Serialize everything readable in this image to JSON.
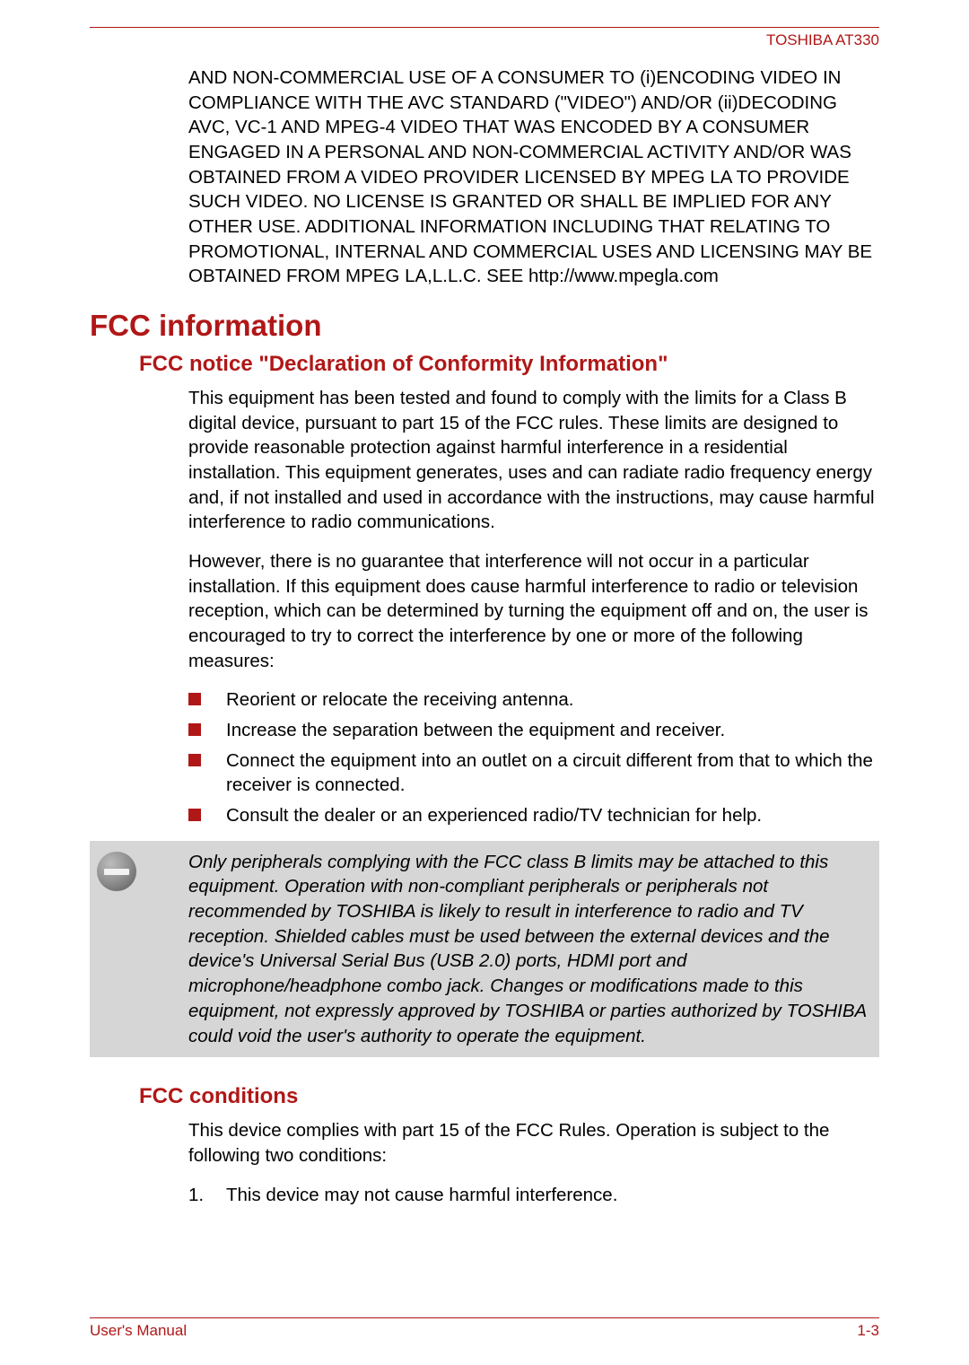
{
  "header": {
    "brand": "TOSHIBA AT330"
  },
  "intro_continuation": "AND NON-COMMERCIAL USE OF A CONSUMER TO (i)ENCODING VIDEO IN COMPLIANCE WITH THE AVC STANDARD (\"VIDEO\") AND/OR (ii)DECODING AVC, VC-1 AND MPEG-4 VIDEO THAT WAS ENCODED BY A CONSUMER ENGAGED IN A PERSONAL AND NON-COMMERCIAL ACTIVITY AND/OR WAS OBTAINED FROM A VIDEO PROVIDER LICENSED BY MPEG LA TO PROVIDE SUCH VIDEO. NO LICENSE IS GRANTED OR SHALL BE IMPLIED FOR ANY OTHER USE. ADDITIONAL INFORMATION INCLUDING THAT RELATING TO PROMOTIONAL, INTERNAL AND COMMERCIAL USES AND LICENSING MAY BE OBTAINED FROM MPEG LA,L.L.C. SEE http://www.mpegla.com",
  "sections": {
    "fcc_info": {
      "title": "FCC information",
      "notice": {
        "title": "FCC notice \"Declaration of Conformity Information\"",
        "para1": "This equipment has been tested and found to comply with the limits for a Class B digital device, pursuant to part 15 of the FCC rules. These limits are designed to provide reasonable protection against harmful interference in a residential installation. This equipment generates, uses and can radiate radio frequency energy and, if not installed and used in accordance with the instructions, may cause harmful interference to radio communications.",
        "para2": "However, there is no guarantee that interference will not occur in a particular installation. If this equipment does cause harmful interference to radio or television reception, which can be determined by turning the equipment off and on, the user is encouraged to try to correct the interference by one or more of the following measures:",
        "bullets": [
          "Reorient or relocate the receiving antenna.",
          "Increase the separation between the equipment and receiver.",
          "Connect the equipment into an outlet on a circuit different from that to which the receiver is connected.",
          "Consult the dealer or an experienced radio/TV technician for help."
        ],
        "note": "Only peripherals complying with the FCC class B limits may be attached to this equipment. Operation with non-compliant peripherals or peripherals not recommended by TOSHIBA is likely to result in interference to radio and TV reception. Shielded cables must be used between the external devices and the device's Universal Serial Bus (USB 2.0) ports, HDMI port and microphone/headphone combo jack. Changes or modifications made to this equipment, not expressly approved by TOSHIBA or parties authorized by TOSHIBA could void the user's authority to operate the equipment."
      },
      "conditions": {
        "title": "FCC conditions",
        "para": "This device complies with part 15 of the FCC Rules. Operation is subject to the following two conditions:",
        "items": [
          {
            "num": "1.",
            "text": "This device may not cause harmful interference."
          }
        ]
      }
    }
  },
  "footer": {
    "left": "User's Manual",
    "right": "1-3"
  },
  "colors": {
    "accent": "#b01717",
    "note_bg": "#d6d6d6",
    "text": "#000000",
    "background": "#ffffff"
  }
}
